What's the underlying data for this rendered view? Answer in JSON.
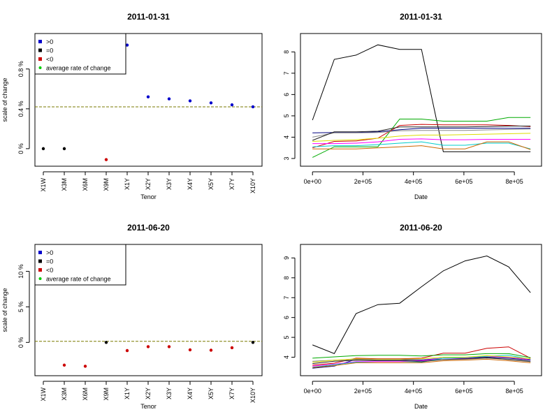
{
  "chart_data": [
    {
      "type": "scatter",
      "title": "2011-01-31",
      "xlabel": "Tenor",
      "ylabel": "scale of change",
      "categories": [
        "X1W",
        "X3M",
        "X6M",
        "X9M",
        "X1Y",
        "X2Y",
        "X3Y",
        "X4Y",
        "X5Y",
        "X7Y",
        "X10Y"
      ],
      "ytick_labels": [
        "0 %",
        "0.4 %",
        "0.8 %"
      ],
      "ytick_values": [
        0,
        0.4,
        0.8
      ],
      "ylim": [
        -0.12,
        1.1
      ],
      "points": [
        {
          "cat": "X1W",
          "value": 0.0,
          "sign": "=0"
        },
        {
          "cat": "X3M",
          "value": 0.0,
          "sign": "=0"
        },
        {
          "cat": "X9M",
          "value": -0.11,
          "sign": "<0"
        },
        {
          "cat": "X1Y",
          "value": 1.04,
          "sign": ">0"
        },
        {
          "cat": "X2Y",
          "value": 0.52,
          "sign": ">0"
        },
        {
          "cat": "X3Y",
          "value": 0.5,
          "sign": ">0"
        },
        {
          "cat": "X4Y",
          "value": 0.48,
          "sign": ">0"
        },
        {
          "cat": "X5Y",
          "value": 0.46,
          "sign": ">0"
        },
        {
          "cat": "X7Y",
          "value": 0.44,
          "sign": ">0"
        },
        {
          "cat": "X10Y",
          "value": 0.42,
          "sign": ">0"
        }
      ],
      "average_line": 0.42,
      "legend": [
        {
          "label": ">0",
          "color": "#0000cc"
        },
        {
          "label": "=0",
          "color": "#000000"
        },
        {
          "label": "<0",
          "color": "#cc0000"
        },
        {
          "label": "average rate of change",
          "color": "#00cc00"
        }
      ],
      "legend_position": "top-left"
    },
    {
      "type": "line",
      "title": "2011-01-31",
      "xlabel": "Date",
      "ylabel": "",
      "xtick_labels": [
        "0e+00",
        "2e+05",
        "4e+05",
        "6e+05",
        "8e+05"
      ],
      "xtick_values": [
        0,
        200000,
        400000,
        600000,
        800000
      ],
      "ytick_labels": [
        "3",
        "4",
        "5",
        "6",
        "7",
        "8"
      ],
      "ytick_values": [
        3,
        4,
        5,
        6,
        7,
        8
      ],
      "xlim": [
        -20000,
        880000
      ],
      "ylim": [
        2.9,
        8.6
      ],
      "x": [
        0,
        86400,
        172800,
        259200,
        345600,
        432000,
        518400,
        604800,
        691200,
        777600,
        864000
      ],
      "series": [
        {
          "color": "#000000",
          "values": [
            4.8,
            7.65,
            7.85,
            8.33,
            8.12,
            8.12,
            3.32,
            3.32,
            3.32,
            3.32,
            3.32
          ]
        },
        {
          "color": "#00aa00",
          "values": [
            3.05,
            3.55,
            3.55,
            3.55,
            4.85,
            4.85,
            4.75,
            4.75,
            4.75,
            4.92,
            4.92
          ]
        },
        {
          "color": "#000080",
          "values": [
            4.2,
            4.22,
            4.22,
            4.25,
            4.35,
            4.42,
            4.42,
            4.42,
            4.42,
            4.42,
            4.42
          ]
        },
        {
          "color": "#cc0000",
          "values": [
            3.5,
            3.8,
            3.82,
            3.95,
            4.55,
            4.6,
            4.58,
            4.58,
            4.58,
            4.55,
            4.5
          ]
        },
        {
          "color": "#888888",
          "values": [
            4.0,
            4.2,
            4.2,
            4.22,
            4.3,
            4.32,
            4.32,
            4.32,
            4.34,
            4.36,
            4.38
          ]
        },
        {
          "color": "#dddd00",
          "values": [
            3.8,
            3.85,
            3.88,
            3.95,
            4.05,
            4.1,
            4.1,
            4.12,
            4.14,
            4.16,
            4.18
          ]
        },
        {
          "color": "#ff00ff",
          "values": [
            3.7,
            3.7,
            3.72,
            3.78,
            3.9,
            3.92,
            3.88,
            3.88,
            3.9,
            3.9,
            3.9
          ]
        },
        {
          "color": "#00cccc",
          "values": [
            3.55,
            3.6,
            3.6,
            3.65,
            3.72,
            3.78,
            3.62,
            3.62,
            3.72,
            3.72,
            3.45
          ]
        },
        {
          "color": "#222222",
          "values": [
            3.85,
            4.25,
            4.25,
            4.28,
            4.48,
            4.48,
            4.48,
            4.48,
            4.5,
            4.52,
            4.52
          ]
        },
        {
          "color": "#cc6600",
          "values": [
            3.45,
            3.45,
            3.45,
            3.5,
            3.55,
            3.6,
            3.45,
            3.45,
            3.78,
            3.78,
            3.42
          ]
        }
      ]
    },
    {
      "type": "scatter",
      "title": "2011-06-20",
      "xlabel": "Tenor",
      "ylabel": "scale of change",
      "categories": [
        "X1W",
        "X3M",
        "X6M",
        "X9M",
        "X1Y",
        "X2Y",
        "X3Y",
        "X4Y",
        "X5Y",
        "X7Y",
        "X10Y"
      ],
      "ytick_labels": [
        "0 %",
        "5 %",
        "10 %"
      ],
      "ytick_values": [
        0,
        5,
        10
      ],
      "ylim": [
        -3.9,
        13.0
      ],
      "points": [
        {
          "cat": "X3M",
          "value": -3.2,
          "sign": "<0"
        },
        {
          "cat": "X6M",
          "value": -3.35,
          "sign": "<0"
        },
        {
          "cat": "X9M",
          "value": 0.0,
          "sign": "=0"
        },
        {
          "cat": "X1Y",
          "value": -1.15,
          "sign": "<0"
        },
        {
          "cat": "X2Y",
          "value": -0.6,
          "sign": "<0"
        },
        {
          "cat": "X3Y",
          "value": -0.6,
          "sign": "<0"
        },
        {
          "cat": "X4Y",
          "value": -1.05,
          "sign": "<0"
        },
        {
          "cat": "X5Y",
          "value": -1.1,
          "sign": "<0"
        },
        {
          "cat": "X7Y",
          "value": -0.75,
          "sign": "<0"
        },
        {
          "cat": "X10Y",
          "value": 0.0,
          "sign": "=0"
        }
      ],
      "average_line": 0.15,
      "legend": [
        {
          "label": ">0",
          "color": "#0000cc"
        },
        {
          "label": "=0",
          "color": "#000000"
        },
        {
          "label": "<0",
          "color": "#cc0000"
        },
        {
          "label": "average rate of change",
          "color": "#00cc00"
        }
      ],
      "legend_position": "top-left"
    },
    {
      "type": "line",
      "title": "2011-06-20",
      "xlabel": "Date",
      "ylabel": "",
      "xtick_labels": [
        "0e+00",
        "2e+05",
        "4e+05",
        "6e+05",
        "8e+05"
      ],
      "xtick_values": [
        0,
        200000,
        400000,
        600000,
        800000
      ],
      "ytick_labels": [
        "4",
        "5",
        "6",
        "7",
        "8",
        "9"
      ],
      "ytick_values": [
        4,
        5,
        6,
        7,
        8,
        9
      ],
      "xlim": [
        -20000,
        880000
      ],
      "ylim": [
        3.35,
        9.4
      ],
      "x": [
        0,
        86400,
        172800,
        259200,
        345600,
        432000,
        518400,
        604800,
        691200,
        777600,
        864000
      ],
      "series": [
        {
          "color": "#000000",
          "values": [
            4.62,
            4.18,
            6.2,
            6.65,
            6.72,
            7.55,
            8.35,
            8.85,
            9.1,
            8.55,
            7.25
          ]
        },
        {
          "color": "#cc0000",
          "values": [
            3.6,
            3.7,
            3.95,
            3.92,
            3.92,
            3.95,
            4.2,
            4.2,
            4.45,
            4.52,
            3.95
          ]
        },
        {
          "color": "#00aa00",
          "values": [
            3.95,
            4.02,
            4.08,
            4.1,
            4.1,
            4.06,
            4.12,
            4.12,
            4.18,
            4.18,
            3.98
          ]
        },
        {
          "color": "#000080",
          "values": [
            3.45,
            3.55,
            3.9,
            3.88,
            3.88,
            3.86,
            3.95,
            3.95,
            4.0,
            3.95,
            3.85
          ]
        },
        {
          "color": "#888888",
          "values": [
            3.8,
            3.85,
            3.88,
            3.85,
            3.85,
            3.82,
            3.88,
            3.9,
            3.95,
            3.9,
            3.8
          ]
        },
        {
          "color": "#ff00ff",
          "values": [
            3.55,
            3.65,
            3.78,
            3.78,
            3.78,
            3.82,
            3.95,
            3.95,
            4.05,
            4.0,
            3.88
          ]
        },
        {
          "color": "#00cccc",
          "values": [
            3.5,
            3.62,
            3.75,
            3.72,
            3.72,
            3.75,
            3.95,
            3.98,
            4.05,
            4.1,
            3.9
          ]
        },
        {
          "color": "#dddd00",
          "values": [
            3.75,
            3.85,
            3.92,
            3.9,
            3.9,
            3.92,
            4.0,
            4.0,
            4.08,
            4.02,
            3.92
          ]
        },
        {
          "color": "#222222",
          "values": [
            3.68,
            3.8,
            3.85,
            3.82,
            3.82,
            3.78,
            3.88,
            3.92,
            3.98,
            3.88,
            3.78
          ]
        },
        {
          "color": "#cc6600",
          "values": [
            3.48,
            3.58,
            3.72,
            3.72,
            3.72,
            3.72,
            3.82,
            3.85,
            3.9,
            3.82,
            3.72
          ]
        }
      ]
    }
  ]
}
